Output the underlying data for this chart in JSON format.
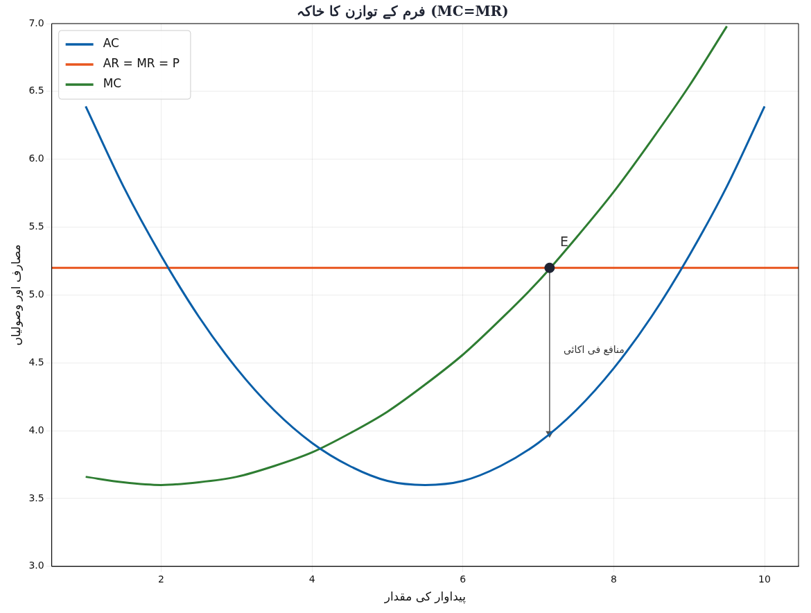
{
  "chart_data": {
    "type": "line",
    "title": "فرم کے توازن کا خاکہ (MC=MR)",
    "xlabel": "پیداوار کی مقدار",
    "ylabel": "مصارف اور وصولیاں",
    "xlim": [
      0.55,
      10.45
    ],
    "xticks": [
      2,
      4,
      6,
      8,
      10
    ],
    "ylim": [
      3.0,
      7.0
    ],
    "yticks": [
      {
        "value": 3.0,
        "label": "3.0"
      },
      {
        "value": 3.5,
        "label": "3.5"
      },
      {
        "value": 4.0,
        "label": "4.0"
      },
      {
        "value": 4.5,
        "label": "4.5"
      },
      {
        "value": 5.0,
        "label": "5.0"
      },
      {
        "value": 5.5,
        "label": "5.5"
      },
      {
        "value": 6.0,
        "label": "6.0"
      },
      {
        "value": 6.5,
        "label": "6.5"
      },
      {
        "value": 7.0,
        "label": "7.0"
      }
    ],
    "grid": true,
    "legend": "top left",
    "marker": "none",
    "line_style": "solid",
    "series": [
      {
        "name": "AC",
        "color": "#0a5fa8",
        "x": [
          1,
          1.5,
          2,
          2.5,
          3,
          3.5,
          4,
          4.5,
          5,
          5.5,
          6,
          6.5,
          7,
          7.5,
          8,
          8.5,
          9,
          9.5,
          10
        ],
        "values": [
          6.39,
          5.8,
          5.29,
          4.84,
          4.46,
          4.15,
          3.91,
          3.74,
          3.63,
          3.6,
          3.63,
          3.74,
          3.91,
          4.15,
          4.46,
          4.84,
          5.29,
          5.8,
          6.39
        ]
      },
      {
        "name": "AR = MR = P",
        "color": "#e8561f",
        "x": [
          0.55,
          10.45
        ],
        "values": [
          5.2,
          5.2
        ]
      },
      {
        "name": "MC",
        "color": "#2e7d32",
        "x": [
          1,
          1.5,
          2,
          2.5,
          3,
          3.5,
          4,
          4.5,
          5,
          5.5,
          6,
          6.5,
          7,
          7.5,
          8,
          8.5,
          9,
          9.5
        ],
        "values": [
          3.66,
          3.62,
          3.6,
          3.62,
          3.66,
          3.74,
          3.84,
          3.98,
          4.14,
          4.34,
          4.56,
          4.82,
          5.1,
          5.42,
          5.76,
          6.14,
          6.54,
          6.98
        ]
      },
      {
        "type": "scatter",
        "color": "#1f2433",
        "x": [
          7.15
        ],
        "values": [
          5.2
        ],
        "marker": "circle"
      },
      {
        "type": "line",
        "color": "#555555",
        "x": [
          7.15,
          7.15
        ],
        "values": [
          5.2,
          3.98
        ],
        "marker": "triangle"
      }
    ],
    "annotations": [
      {
        "text": "E",
        "x": 7.15,
        "y": 5.2
      },
      {
        "text": "منافع فی اکائی",
        "x": 7.15,
        "y": 4.59
      }
    ]
  }
}
